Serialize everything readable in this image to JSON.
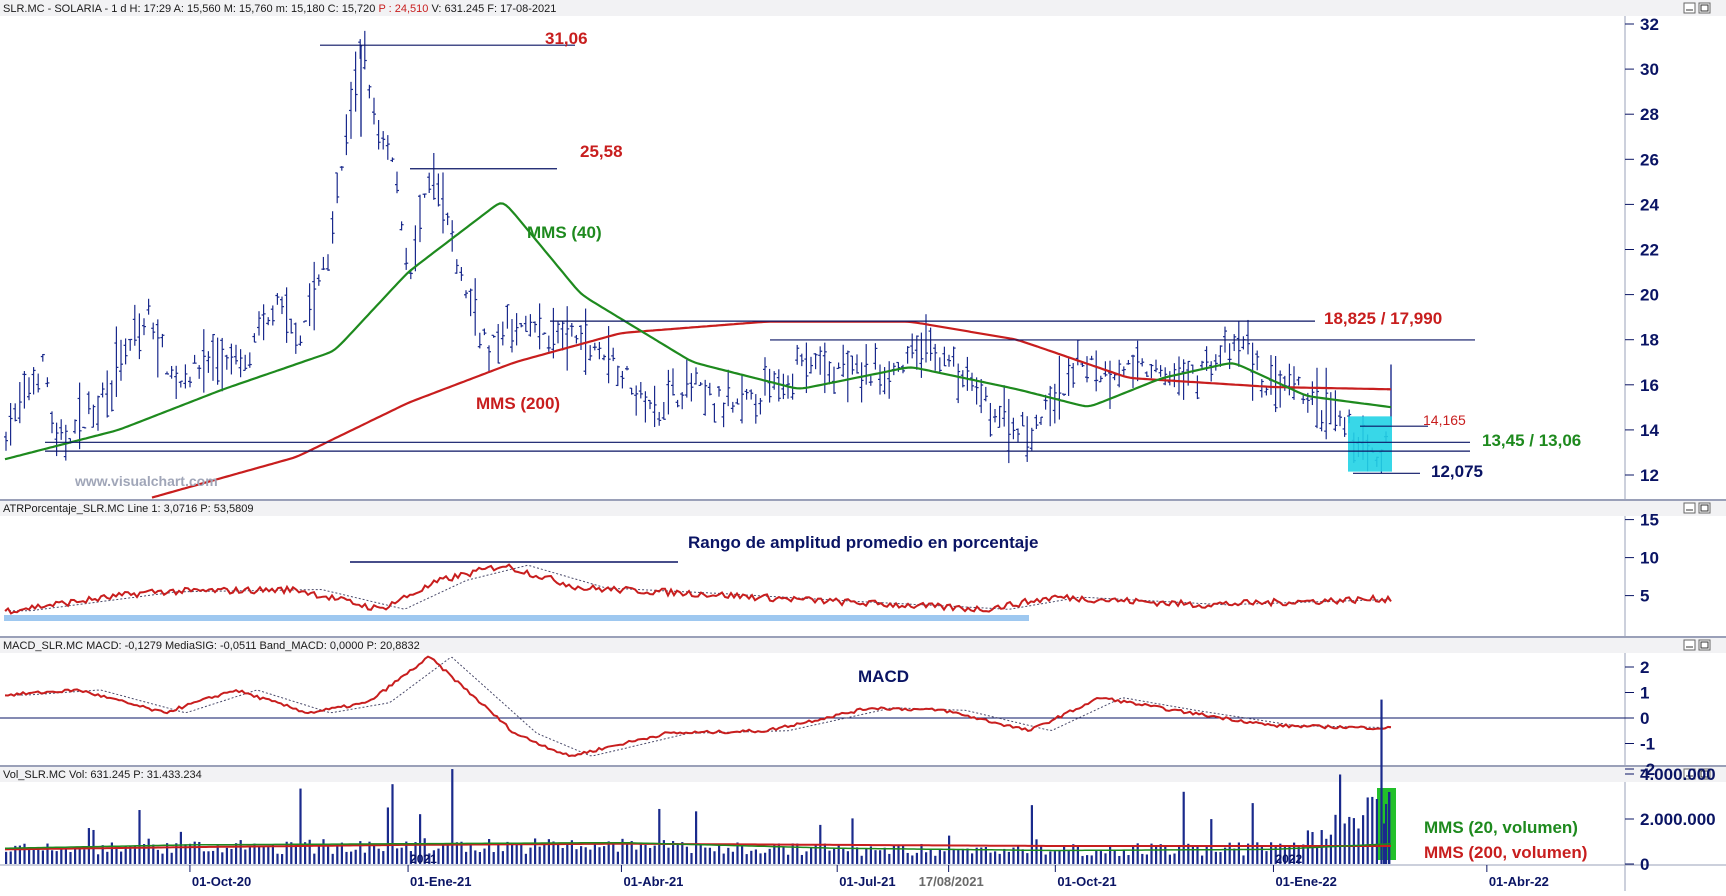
{
  "panels": {
    "price": {
      "header": "SLR.MC - SOLARIA - 1 d  H: 17:29  A: 15,560  M: 15,760  m: 15,180  C: 15,720",
      "header_red": "P : 24,510",
      "header_rest": " V: 631.245  F: 17-08-2021",
      "axis_ticks": [
        12,
        14,
        16,
        18,
        20,
        22,
        24,
        26,
        28,
        30,
        32
      ],
      "watermark": "www.visualchart.com",
      "annotations": {
        "high": "31,06",
        "second_high": "25,58",
        "mms40": "MMS (40)",
        "mms200": "MMS (200)",
        "resistance": "18,825 / 17,990",
        "level_14165": "14,165",
        "support": "13,45 / 13,06",
        "low": "12,075"
      }
    },
    "atr": {
      "header": "ATRPorcentaje_SLR.MC  Line 1: 3,0716  P: 53,5809",
      "title": "Rango de amplitud promedio en porcentaje",
      "axis_ticks": [
        5,
        10,
        15
      ]
    },
    "macd": {
      "header": "MACD_SLR.MC  MACD: -0,1279  MediaSIG: -0,0511  Band_MACD: 0,0000  P: 20,8832",
      "title": "MACD",
      "axis_ticks": [
        "2",
        "1",
        "0",
        "-1",
        "-2"
      ]
    },
    "volume": {
      "header": "Vol_SLR.MC  Vol: 631.245  P: 31.433.234",
      "axis_ticks": [
        "4.000.000",
        "2.000.000",
        "0"
      ],
      "legend_mms20": "MMS (20, volumen)",
      "legend_mms200": "MMS (200, volumen)"
    }
  },
  "x_axis": {
    "labels": [
      "01-Oct-20",
      "01-Ene-21",
      "01-Abr-21",
      "01-Jul-21",
      "17/08/2021",
      "01-Oct-21",
      "01-Ene-22",
      "01-Abr-22"
    ],
    "year_markers": [
      "2021",
      "2022"
    ]
  },
  "colors": {
    "price_bars": "#1a2a8c",
    "mms40": "#1e8a1e",
    "mms200": "#c81e1e",
    "annotation_red": "#c81e1e",
    "annotation_green": "#1e8a1e",
    "annotation_navy": "#0a1464",
    "highlight_cyan": "#22d3e6",
    "highlight_green": "#22c02a",
    "atr_band": "#9ec8f0"
  },
  "chart_data": [
    {
      "type": "line",
      "title": "",
      "series": [
        {
          "name": "MMS (40)",
          "x": [
            "2020-07-15",
            "2020-09-01",
            "2020-10-15",
            "2020-12-01",
            "2021-01-01",
            "2021-02-10",
            "2021-03-15",
            "2021-05-01",
            "2021-06-15",
            "2021-08-01",
            "2021-09-15",
            "2021-10-15",
            "2021-11-15",
            "2021-12-15",
            "2022-01-15",
            "2022-02-20"
          ],
          "values": [
            12.7,
            14.0,
            15.8,
            17.5,
            21.0,
            24.2,
            20.0,
            17.0,
            15.8,
            16.8,
            15.8,
            15.0,
            16.3,
            17.0,
            15.5,
            15.0
          ]
        },
        {
          "name": "MMS (200)",
          "x": [
            "2020-09-15",
            "2020-11-15",
            "2021-01-01",
            "2021-02-15",
            "2021-04-01",
            "2021-06-01",
            "2021-08-01",
            "2021-09-15",
            "2021-11-01",
            "2022-01-01",
            "2022-02-20"
          ],
          "values": [
            11.0,
            12.8,
            15.2,
            17.0,
            18.3,
            18.8,
            18.8,
            18.0,
            16.3,
            15.9,
            15.8
          ]
        }
      ],
      "ylim": [
        11,
        32
      ],
      "annotations": [
        "31,06",
        "25,58",
        "18,825 / 17,990",
        "14,165",
        "13,45 / 13,06",
        "12,075"
      ]
    },
    {
      "type": "line",
      "title": "Rango de amplitud promedio en porcentaje",
      "x": [
        "2020-07-15",
        "2020-09-15",
        "2020-11-15",
        "2020-12-20",
        "2021-01-15",
        "2021-02-10",
        "2021-03-15",
        "2021-05-01",
        "2021-07-01",
        "2021-09-01",
        "2021-10-01",
        "2021-12-01",
        "2022-02-20"
      ],
      "values": [
        3.0,
        5.5,
        5.8,
        3.2,
        7.0,
        9.0,
        6.0,
        5.3,
        4.2,
        3.2,
        4.8,
        3.8,
        4.6
      ],
      "ylim": [
        1,
        16
      ]
    },
    {
      "type": "line",
      "title": "MACD",
      "x": [
        "2020-07-15",
        "2020-08-15",
        "2020-09-20",
        "2020-10-20",
        "2020-11-20",
        "2020-12-15",
        "2021-01-10",
        "2021-02-15",
        "2021-03-10",
        "2021-04-20",
        "2021-06-01",
        "2021-07-15",
        "2021-08-15",
        "2021-09-20",
        "2021-10-20",
        "2021-11-20",
        "2022-01-01",
        "2022-02-20"
      ],
      "values": [
        0.9,
        1.1,
        0.2,
        1.1,
        0.2,
        0.6,
        2.4,
        -0.6,
        -1.5,
        -0.6,
        -0.5,
        0.4,
        0.3,
        -0.5,
        0.8,
        0.3,
        -0.3,
        -0.4
      ],
      "ylim": [
        -2,
        2.5
      ]
    },
    {
      "type": "bar",
      "title": "",
      "x": [
        "2020-07-15",
        "2020-10-01",
        "2021-01-01",
        "2021-04-01",
        "2021-07-01",
        "2021-10-01",
        "2022-01-01",
        "2022-02-20"
      ],
      "values": [
        700000,
        800000,
        900000,
        900000,
        700000,
        700000,
        750000,
        3000000
      ],
      "series": [
        {
          "name": "MMS (20, volumen)",
          "values": [
            700000,
            850000,
            900000,
            950000,
            700000,
            600000,
            650000,
            900000
          ]
        },
        {
          "name": "MMS (200, volumen)",
          "values": [
            650000,
            750000,
            850000,
            900000,
            850000,
            800000,
            800000,
            800000
          ]
        }
      ],
      "ylim": [
        0,
        4000000
      ]
    }
  ]
}
